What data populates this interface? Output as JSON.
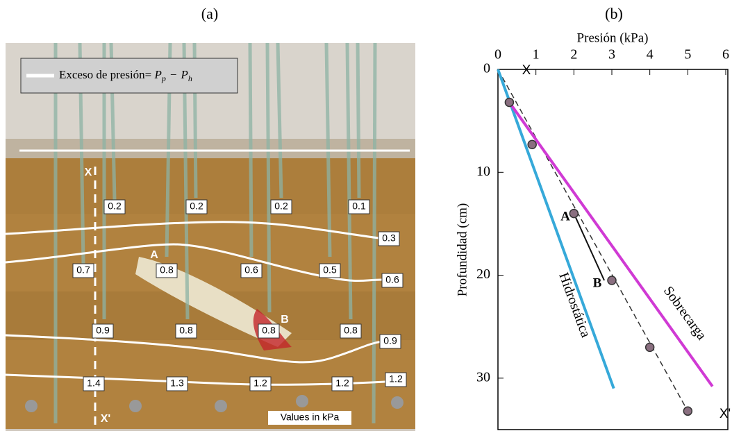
{
  "panels": [
    "(a)",
    "(b)"
  ],
  "photo": {
    "legend_text": "Exceso de presión=",
    "formula": [
      "P",
      "p",
      "−",
      "P",
      "h"
    ],
    "labels": [
      "0.2",
      "0.2",
      "0.2",
      "0.1",
      "0.3",
      "0.7",
      "0.8",
      "0.6",
      "0.5",
      "0.6",
      "0.9",
      "0.8",
      "0.8",
      "0.8",
      "0.9",
      "1.4",
      "1.3",
      "1.2",
      "1.2",
      "1.2"
    ],
    "marks": [
      "A",
      "B",
      "X",
      "X'"
    ],
    "note": "Values in kPa"
  },
  "chart_data": {
    "type": "scatter",
    "xlabel": "Presión (kPa)",
    "ylabel": "Profundidad (cm)",
    "xlim": [
      0,
      6
    ],
    "xticks": [
      0,
      1,
      2,
      3,
      4,
      5,
      6
    ],
    "ylim": [
      0,
      35
    ],
    "yticks": [
      0,
      10,
      20,
      30
    ],
    "y_inverted": true,
    "x_axis_position": "top",
    "series": [
      {
        "color": "#8a6f80",
        "kind": "points",
        "x": [
          0.3,
          0.9,
          2.0,
          3.0,
          4.0,
          5.0
        ],
        "values": [
          3.2,
          7.3,
          14,
          20.5,
          27,
          33.2
        ]
      },
      {
        "color": "#333333",
        "kind": "dashed",
        "x": [
          0,
          5.0
        ],
        "values": [
          0,
          33.2
        ]
      },
      {
        "color": "#111111",
        "kind": "line",
        "x": [
          2.0,
          2.8
        ],
        "values": [
          14,
          20.5
        ]
      },
      {
        "name": "Hidrostática",
        "color": "#36a9d9",
        "kind": "line",
        "x": [
          0,
          3.05
        ],
        "values": [
          0,
          31
        ]
      },
      {
        "name": "Sobrecarga",
        "color": "#d03ad4",
        "kind": "line",
        "x": [
          0.3,
          5.65
        ],
        "values": [
          3.2,
          30.8
        ]
      }
    ],
    "annotations": [
      "X",
      "X'",
      "A",
      "B"
    ]
  }
}
